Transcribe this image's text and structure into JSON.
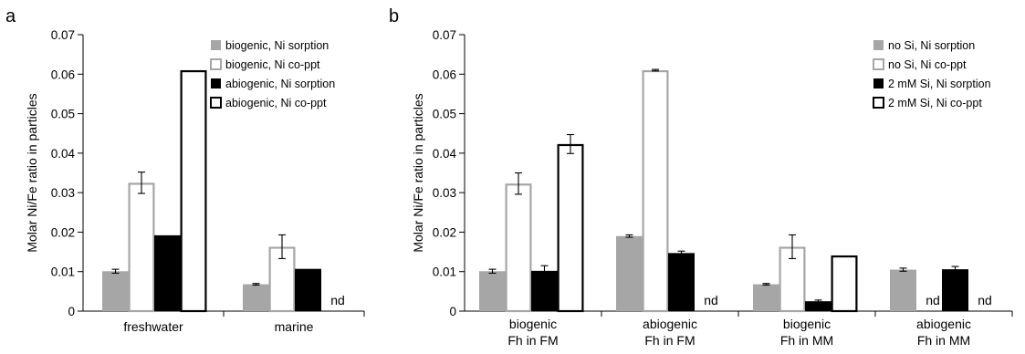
{
  "chart_data": [
    {
      "panel": "a",
      "type": "bar",
      "ylabel": "Molar Ni/Fe ratio in particles",
      "ylim": [
        0,
        0.07
      ],
      "yticks": [
        "0",
        "0.01",
        "0.02",
        "0.03",
        "0.04",
        "0.05",
        "0.06",
        "0.07"
      ],
      "categories": [
        {
          "label": "freshwater"
        },
        {
          "label": "marine"
        }
      ],
      "legend_placement": "top-right",
      "series": [
        {
          "name": "biogenic, Ni sorption",
          "style": "gray-fill",
          "values": [
            0.0101,
            0.0068
          ],
          "errors": [
            0.0005,
            0.0002
          ]
        },
        {
          "name": "biogenic, Ni co-ppt",
          "style": "gray-outline",
          "values": [
            0.0325,
            0.0163
          ],
          "errors": [
            0.0027,
            0.003
          ]
        },
        {
          "name": "abiogenic, Ni sorption",
          "style": "black-fill",
          "values": [
            0.0192,
            0.0107
          ],
          "errors": [
            0,
            0
          ]
        },
        {
          "name": "abiogenic, Ni co-ppt",
          "style": "black-outline",
          "values": [
            0.061,
            null
          ],
          "errors": [
            0,
            null
          ]
        }
      ],
      "nd_label": "nd"
    },
    {
      "panel": "b",
      "type": "bar",
      "ylabel": "Molar Ni/Fe ratio in particles",
      "ylim": [
        0,
        0.07
      ],
      "yticks": [
        "0",
        "0.01",
        "0.02",
        "0.03",
        "0.04",
        "0.05",
        "0.06",
        "0.07"
      ],
      "categories": [
        {
          "line1": "biogenic",
          "line2": "Fh in FM"
        },
        {
          "line1": "abiogenic",
          "line2": "Fh in FM"
        },
        {
          "line1": "biogenic",
          "line2": "Fh in MM"
        },
        {
          "line1": "abiogenic",
          "line2": "Fh in MM"
        }
      ],
      "legend_placement": "top-right",
      "series": [
        {
          "name": "no Si, Ni sorption",
          "style": "gray-fill",
          "values": [
            0.0101,
            0.019,
            0.0068,
            0.0105
          ],
          "errors": [
            0.0005,
            0.0003,
            0.0002,
            0.0004
          ]
        },
        {
          "name": "no Si, Ni co-ppt",
          "style": "gray-outline",
          "values": [
            0.0323,
            0.061,
            0.0163,
            null
          ],
          "errors": [
            0.0027,
            0.0002,
            0.003,
            null
          ]
        },
        {
          "name": "2 mM Si, Ni sorption",
          "style": "black-fill",
          "values": [
            0.0102,
            0.0147,
            0.0025,
            0.0106
          ],
          "errors": [
            0.0013,
            0.0005,
            0.0003,
            0.0007
          ]
        },
        {
          "name": "2 mM Si, Ni co-ppt",
          "style": "black-outline",
          "values": [
            0.0423,
            null,
            0.0141,
            null
          ],
          "errors": [
            0.0024,
            null,
            0,
            null
          ]
        }
      ],
      "nd_label": "nd"
    }
  ]
}
